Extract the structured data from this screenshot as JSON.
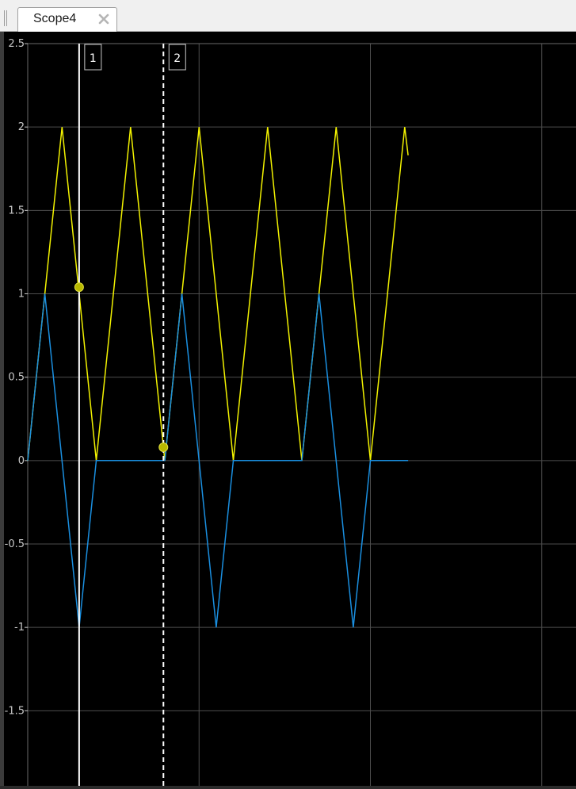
{
  "tab": {
    "label": "Scope4",
    "close_icon": "close-icon"
  },
  "colors": {
    "background": "#000000",
    "grid": "#4d4d4d",
    "axis_text": "#c8c8c8",
    "series_yellow": "#f2f200",
    "series_blue": "#1a8fe0",
    "cursor": "#ffffff"
  },
  "chart_data": {
    "type": "line",
    "title": "",
    "xlabel": "",
    "ylabel": "",
    "ylim": [
      -1.95,
      2.5
    ],
    "xlim": [
      0,
      16
    ],
    "grid": true,
    "yticks": [
      2.5,
      2,
      1.5,
      1,
      0.5,
      0,
      -0.5,
      -1,
      -1.5
    ],
    "ytick_labels": [
      "2.5",
      "2",
      "1.5",
      "1",
      "0.5",
      "0",
      "-0.5",
      "-1",
      "-1.5"
    ],
    "xgrid": [
      5,
      10,
      15
    ],
    "series": [
      {
        "color": "#f2f200",
        "x": [
          0,
          0.5,
          1,
          2,
          2.5,
          3,
          4,
          4.5,
          5,
          6,
          6.5,
          7,
          8,
          8.5,
          9,
          10,
          10.5,
          11,
          11.1
        ],
        "y": [
          0,
          1,
          2,
          0,
          1,
          2,
          0,
          1,
          2,
          0,
          1,
          2,
          0,
          1,
          2,
          0,
          1,
          2,
          1.83
        ]
      },
      {
        "color": "#1a8fe0",
        "x": [
          0,
          0.5,
          1.5,
          2,
          4,
          4.5,
          5.5,
          6,
          8,
          8.5,
          9.5,
          10,
          11.1
        ],
        "y": [
          0,
          1,
          -1,
          0,
          0,
          1,
          -1,
          0,
          0,
          1,
          -1,
          0,
          0
        ]
      }
    ],
    "cursors": [
      {
        "label": "1",
        "x": 1.5,
        "style": "solid",
        "marker_y": 1.04
      },
      {
        "label": "2",
        "x": 3.96,
        "style": "dashed",
        "marker_y": 0.08
      }
    ]
  }
}
